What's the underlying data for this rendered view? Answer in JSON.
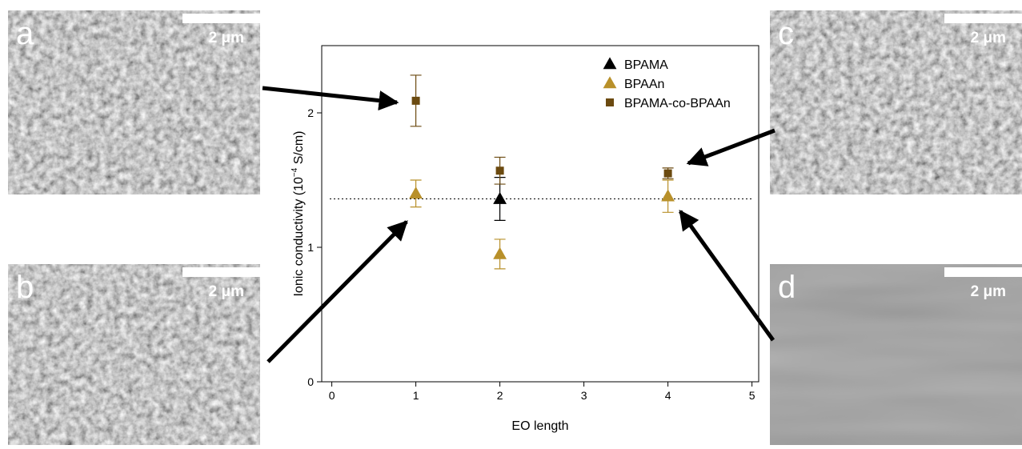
{
  "chart_data": {
    "type": "scatter",
    "x_label": "EO length",
    "y_label_parts": [
      "Ionic conductivity (10",
      "−4",
      " S/cm)"
    ],
    "xlim": [
      -0.12,
      5.08
    ],
    "xticks": [
      0,
      1,
      2,
      3,
      4,
      5
    ],
    "ylim": [
      0,
      2.5
    ],
    "yticks": [
      0,
      1,
      2
    ],
    "hline": 1.36,
    "legend": "upper right",
    "series": [
      {
        "name": "BPAMA",
        "color": "#000000",
        "marker": "triangle",
        "x": [
          2
        ],
        "values": [
          1.36
        ],
        "errors": [
          0.16
        ]
      },
      {
        "name": "BPAAn",
        "color": "#b8902a",
        "marker": "triangle",
        "x": [
          1,
          2,
          4
        ],
        "values": [
          1.4,
          0.95,
          1.38
        ],
        "errors": [
          0.1,
          0.11,
          0.12
        ]
      },
      {
        "name": "BPAMA-co-BPAAn",
        "color": "#6b4a10",
        "marker": "square",
        "x": [
          1,
          2,
          4
        ],
        "values": [
          2.09,
          1.57,
          1.55
        ],
        "errors": [
          0.19,
          0.1,
          0.04
        ]
      }
    ]
  },
  "panels": [
    {
      "label": "a",
      "scale": "2 μm"
    },
    {
      "label": "b",
      "scale": "2 μm"
    },
    {
      "label": "c",
      "scale": "2 μm"
    },
    {
      "label": "d",
      "scale": "2 μm"
    }
  ]
}
